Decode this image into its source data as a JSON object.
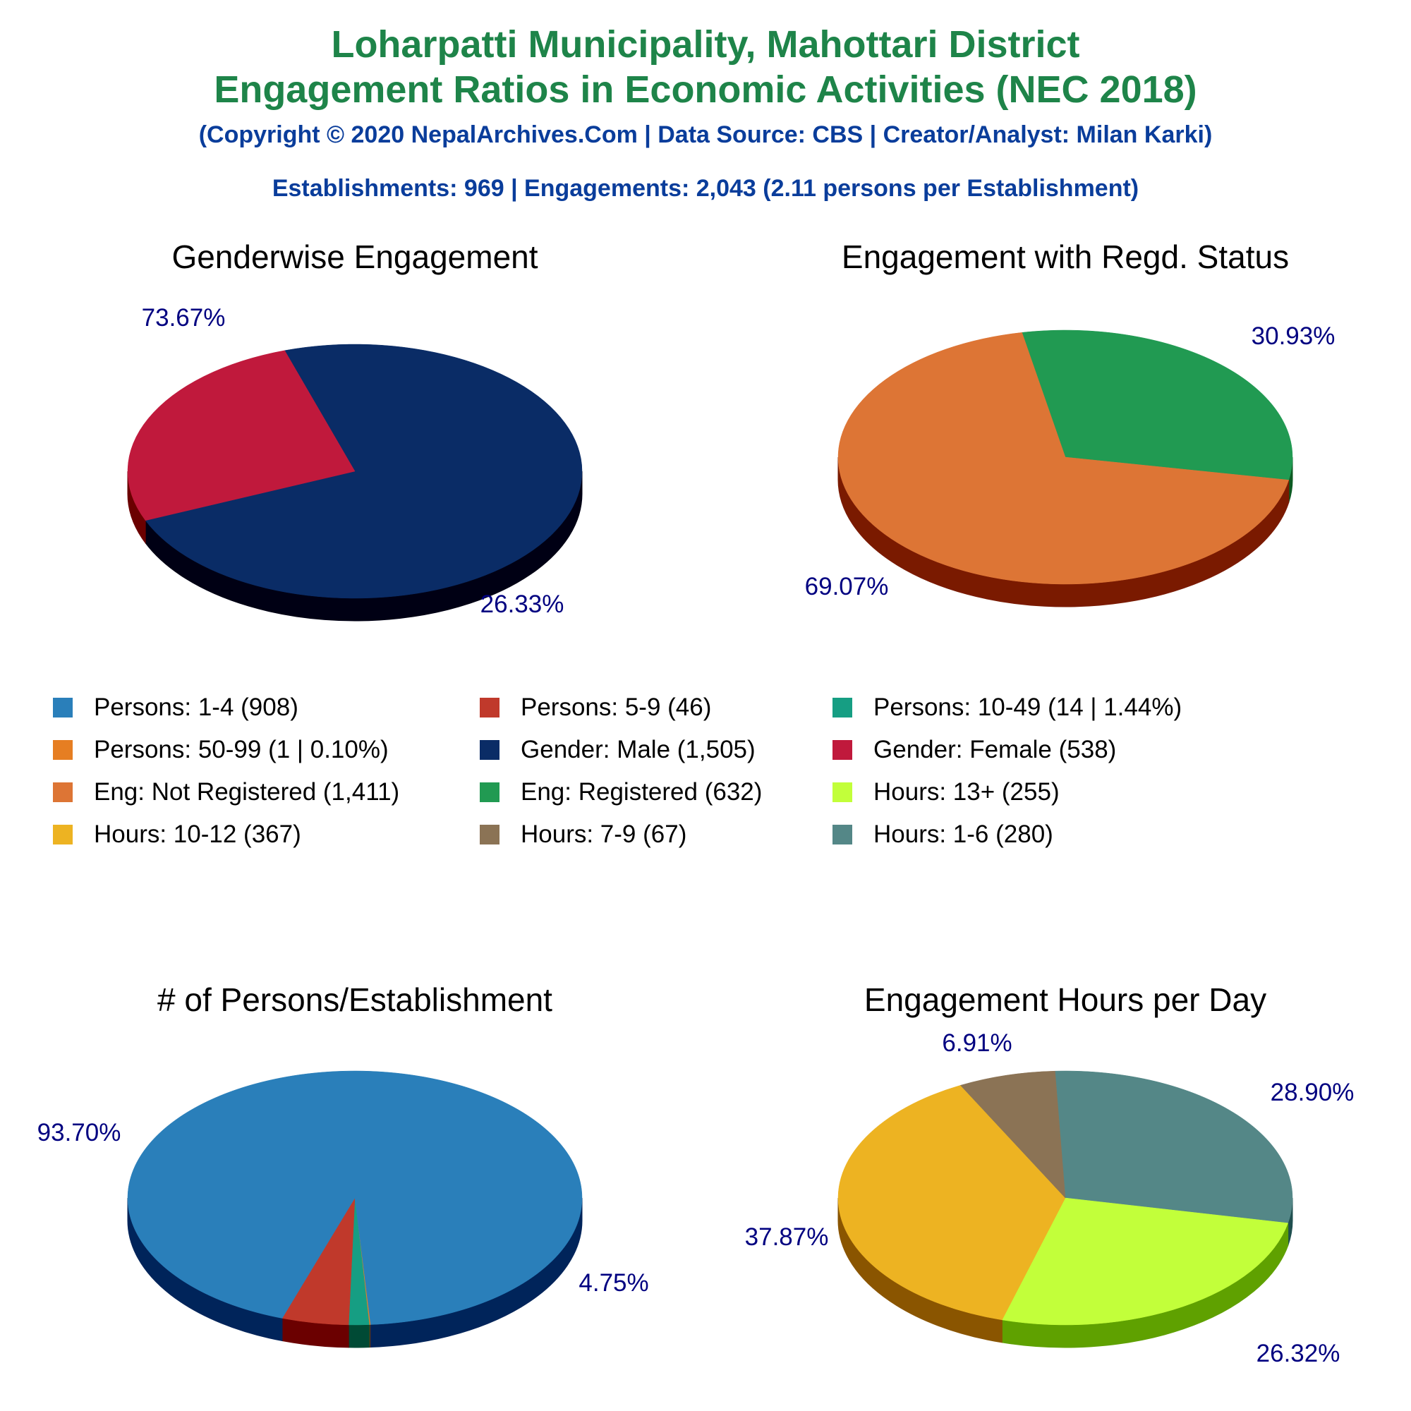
{
  "header": {
    "title_line1": "Loharpatti Municipality, Mahottari District",
    "title_line2": "Engagement Ratios in Economic Activities (NEC 2018)",
    "copyright": "(Copyright © 2020 NepalArchives.Com | Data Source: CBS | Creator/Analyst: Milan Karki)",
    "summary": "Establishments: 969 | Engagements: 2,043 (2.11 persons per Establishment)"
  },
  "colors": {
    "title": "#1e8449",
    "subtitle": "#0a3d9b",
    "slice_label": "#000080"
  },
  "legend": [
    {
      "label": "Persons: 1-4 (908)",
      "color": "#2a7fba"
    },
    {
      "label": "Persons: 5-9 (46)",
      "color": "#c0392b"
    },
    {
      "label": "Persons: 10-49 (14 | 1.44%)",
      "color": "#169e83"
    },
    {
      "label": "Persons: 50-99 (1 | 0.10%)",
      "color": "#e67e22"
    },
    {
      "label": "Gender: Male (1,505)",
      "color": "#0a2c66"
    },
    {
      "label": "Gender: Female (538)",
      "color": "#c0193c"
    },
    {
      "label": "Eng: Not Registered (1,411)",
      "color": "#dd7535"
    },
    {
      "label": "Eng: Registered (632)",
      "color": "#219a52"
    },
    {
      "label": "Hours: 13+ (255)",
      "color": "#c2ff3a"
    },
    {
      "label": "Hours: 10-12 (367)",
      "color": "#edb322"
    },
    {
      "label": "Hours: 7-9 (67)",
      "color": "#8b7355"
    },
    {
      "label": "Hours: 1-6 (280)",
      "color": "#548787"
    }
  ],
  "chart_data": [
    {
      "type": "pie",
      "title": "Genderwise Engagement",
      "series": [
        {
          "name": "Gender: Male",
          "value": 1505,
          "label": "73.67%",
          "color": "#0a2c66",
          "side": "#000014"
        },
        {
          "name": "Gender: Female",
          "value": 538,
          "label": "26.33%",
          "color": "#c0193c",
          "side": "#6b0000"
        }
      ]
    },
    {
      "type": "pie",
      "title": "Engagement with Regd. Status",
      "series": [
        {
          "name": "Eng: Registered",
          "value": 632,
          "label": "30.93%",
          "color": "#219a52",
          "side": "#0c5a22"
        },
        {
          "name": "Eng: Not Registered",
          "value": 1411,
          "label": "69.07%",
          "color": "#dd7535",
          "side": "#7a1a00"
        }
      ]
    },
    {
      "type": "pie",
      "title": "# of Persons/Establishment",
      "series": [
        {
          "name": "Persons: 50-99",
          "value": 1,
          "label": "",
          "color": "#e67e22",
          "side": "#7a3a00"
        },
        {
          "name": "Persons: 10-49",
          "value": 14,
          "label": "",
          "color": "#169e83",
          "side": "#004a35"
        },
        {
          "name": "Persons: 5-9",
          "value": 46,
          "label": "4.75%",
          "color": "#c0392b",
          "side": "#6b0000"
        },
        {
          "name": "Persons: 1-4",
          "value": 908,
          "label": "93.70%",
          "color": "#2a7fba",
          "side": "#00245a"
        }
      ]
    },
    {
      "type": "pie",
      "title": "Engagement Hours per Day",
      "series": [
        {
          "name": "Hours: 1-6",
          "value": 280,
          "label": "28.90%",
          "color": "#548787",
          "side": "#1f4f4f"
        },
        {
          "name": "Hours: 13+",
          "value": 255,
          "label": "26.32%",
          "color": "#c2ff3a",
          "side": "#5fa100"
        },
        {
          "name": "Hours: 10-12",
          "value": 367,
          "label": "37.87%",
          "color": "#edb322",
          "side": "#8a5500"
        },
        {
          "name": "Hours: 7-9",
          "value": 67,
          "label": "6.91%",
          "color": "#8b7355",
          "side": "#4a3520"
        }
      ]
    }
  ]
}
